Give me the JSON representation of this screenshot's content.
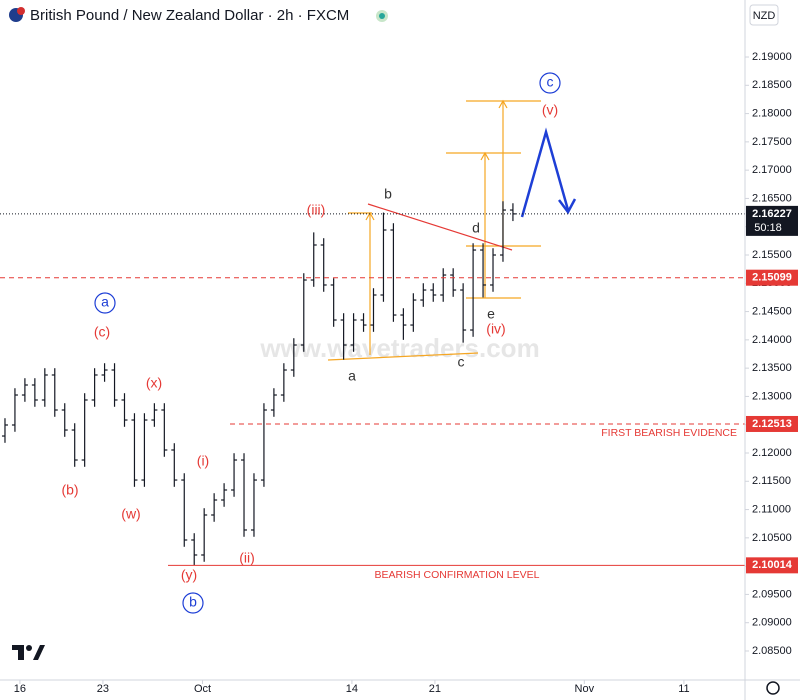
{
  "chart_data": {
    "type": "ohlc",
    "title": "British Pound / New Zealand Dollar · 2h · FXCM",
    "currency": "NZD",
    "watermark": "www.wavetraders.com",
    "color": "#131722",
    "x": [
      -0.9,
      -0.3,
      0.3,
      0.9,
      1.5,
      2.1,
      2.7,
      3.3,
      3.9,
      4.5,
      5.1,
      5.7,
      6.3,
      6.9,
      7.5,
      8.1,
      8.7,
      9.3,
      9.9,
      10.5,
      11.1,
      11.7,
      12.3,
      12.9,
      13.5,
      14.1,
      14.7,
      15.3,
      15.9,
      16.5,
      17.1,
      17.7,
      18.3,
      18.9,
      19.5,
      20.1,
      20.7,
      21.3,
      21.9,
      22.5,
      23.1,
      23.7,
      24.3,
      24.9,
      25.5,
      26.1,
      26.7,
      27.3,
      27.9,
      28.5,
      29.1,
      29.7
    ],
    "open": [
      2.123,
      2.12495,
      2.13025,
      2.13202,
      2.12937,
      2.13379,
      2.1276,
      2.12406,
      2.11876,
      2.12937,
      2.13379,
      2.13467,
      2.12937,
      2.12583,
      2.11522,
      2.12583,
      2.1276,
      2.12053,
      2.11522,
      2.10462,
      2.10197,
      2.10904,
      2.11169,
      2.11346,
      2.11876,
      2.10639,
      2.11522,
      2.1276,
      2.13025,
      2.13467,
      2.13909,
      2.15058,
      2.15677,
      2.1497,
      2.14351,
      2.13909,
      2.14351,
      2.14262,
      2.14793,
      2.15942,
      2.14439,
      2.14262,
      2.14704,
      2.14881,
      2.14793,
      2.15146,
      2.14881,
      2.14174,
      2.15588,
      2.1497,
      2.155,
      2.16295
    ],
    "high": [
      2.12615,
      2.13145,
      2.13322,
      2.13322,
      2.13499,
      2.13499,
      2.1288,
      2.12526,
      2.13057,
      2.13499,
      2.13587,
      2.13587,
      2.13057,
      2.12703,
      2.12703,
      2.1288,
      2.1288,
      2.12173,
      2.11642,
      2.10582,
      2.11024,
      2.11289,
      2.11466,
      2.11996,
      2.11996,
      2.11642,
      2.1288,
      2.13145,
      2.13587,
      2.14029,
      2.15178,
      2.159,
      2.15797,
      2.1509,
      2.14471,
      2.14471,
      2.14471,
      2.14913,
      2.1625,
      2.16062,
      2.14559,
      2.14824,
      2.15001,
      2.15001,
      2.15266,
      2.15266,
      2.15001,
      2.15708,
      2.15708,
      2.1562,
      2.1645,
      2.16415
    ],
    "low": [
      2.1218,
      2.12375,
      2.12905,
      2.12817,
      2.12817,
      2.1264,
      2.12286,
      2.11756,
      2.11756,
      2.12817,
      2.13259,
      2.12817,
      2.12463,
      2.11402,
      2.11402,
      2.12463,
      2.11933,
      2.11402,
      2.10342,
      2.10014,
      2.10077,
      2.10784,
      2.11049,
      2.11226,
      2.10519,
      2.10519,
      2.11402,
      2.1264,
      2.12905,
      2.13347,
      2.13789,
      2.14938,
      2.1485,
      2.14231,
      2.1365,
      2.13789,
      2.14142,
      2.14142,
      2.14673,
      2.14319,
      2.14,
      2.14142,
      2.14584,
      2.14673,
      2.14673,
      2.14761,
      2.1395,
      2.14054,
      2.1475,
      2.1485,
      2.1538,
      2.161
    ],
    "close": [
      2.12495,
      2.13025,
      2.13202,
      2.12937,
      2.13379,
      2.1276,
      2.12406,
      2.11876,
      2.12937,
      2.13379,
      2.13467,
      2.12937,
      2.12583,
      2.11522,
      2.12583,
      2.1276,
      2.12053,
      2.11522,
      2.10462,
      2.10197,
      2.10904,
      2.11169,
      2.11346,
      2.11876,
      2.10639,
      2.11522,
      2.1276,
      2.13025,
      2.13467,
      2.13909,
      2.15058,
      2.15677,
      2.1497,
      2.14351,
      2.13909,
      2.14351,
      2.14262,
      2.14793,
      2.15942,
      2.14439,
      2.14262,
      2.14704,
      2.14881,
      2.14793,
      2.15146,
      2.14881,
      2.14174,
      2.15588,
      2.1497,
      2.155,
      2.16295,
      2.16227
    ],
    "xlim": [
      -1.2,
      43.68
    ],
    "ylim": [
      2.07987,
      2.20008
    ],
    "xticks": [
      {
        "value": 0,
        "label": "16"
      },
      {
        "value": 5,
        "label": "23"
      },
      {
        "value": 11,
        "label": "Oct"
      },
      {
        "value": 20,
        "label": "14"
      },
      {
        "value": 25,
        "label": "21"
      },
      {
        "value": 34,
        "label": "Nov"
      },
      {
        "value": 40,
        "label": "11"
      }
    ],
    "yticks": [
      {
        "value": 2.085,
        "label": "2.08500"
      },
      {
        "value": 2.09,
        "label": "2.09000"
      },
      {
        "value": 2.095,
        "label": "2.09500"
      },
      {
        "value": 2.1,
        "label": "2.10000"
      },
      {
        "value": 2.105,
        "label": "2.10500"
      },
      {
        "value": 2.11,
        "label": "2.11000"
      },
      {
        "value": 2.115,
        "label": "2.11500"
      },
      {
        "value": 2.12,
        "label": "2.12000"
      },
      {
        "value": 2.125,
        "label": "2.12500"
      },
      {
        "value": 2.13,
        "label": "2.13000"
      },
      {
        "value": 2.135,
        "label": "2.13500"
      },
      {
        "value": 2.14,
        "label": "2.14000"
      },
      {
        "value": 2.145,
        "label": "2.14500"
      },
      {
        "value": 2.15,
        "label": "2.15000"
      },
      {
        "value": 2.155,
        "label": "2.15500"
      },
      {
        "value": 2.16,
        "label": "2.16000"
      },
      {
        "value": 2.165,
        "label": "2.16500"
      },
      {
        "value": 2.17,
        "label": "2.17000"
      },
      {
        "value": 2.175,
        "label": "2.17500"
      },
      {
        "value": 2.18,
        "label": "2.18000"
      },
      {
        "value": 2.185,
        "label": "2.18500"
      },
      {
        "value": 2.19,
        "label": "2.19000"
      }
    ],
    "last_price": 2.16227,
    "countdown": "50:18",
    "levels": [
      {
        "value": 2.15099,
        "dashed": true,
        "color": "#e53935"
      },
      {
        "value": 2.12513,
        "dashed": true,
        "color": "#e53935",
        "text": "FIRST BEARISH EVIDENCE"
      },
      {
        "value": 2.10014,
        "dashed": false,
        "color": "#e53935",
        "text": "BEARISH CONFIRMATION LEVEL"
      }
    ],
    "wave_labels": [
      {
        "text": "(iii)",
        "color": "#e53935"
      },
      {
        "text": "b",
        "color": "#333333"
      },
      {
        "text": "d",
        "color": "#333333"
      },
      {
        "text": "(v)",
        "color": "#e53935"
      },
      {
        "text": "c",
        "color": "#1e3fd6",
        "circled": true
      },
      {
        "text": "(iv)",
        "color": "#e53935"
      },
      {
        "text": "e",
        "color": "#333333"
      },
      {
        "text": "a",
        "color": "#333333"
      },
      {
        "text": "c",
        "color": "#333333"
      },
      {
        "text": "a",
        "color": "#1e3fd6",
        "circled": true
      },
      {
        "text": "(c)",
        "color": "#e53935"
      },
      {
        "text": "(x)",
        "color": "#e53935"
      },
      {
        "text": "(b)",
        "color": "#e53935"
      },
      {
        "text": "(w)",
        "color": "#e53935"
      },
      {
        "text": "(i)",
        "color": "#e53935"
      },
      {
        "text": "(y)",
        "color": "#e53935"
      },
      {
        "text": "(ii)",
        "color": "#e53935"
      },
      {
        "text": "b",
        "color": "#1e3fd6",
        "circled": true
      }
    ]
  }
}
